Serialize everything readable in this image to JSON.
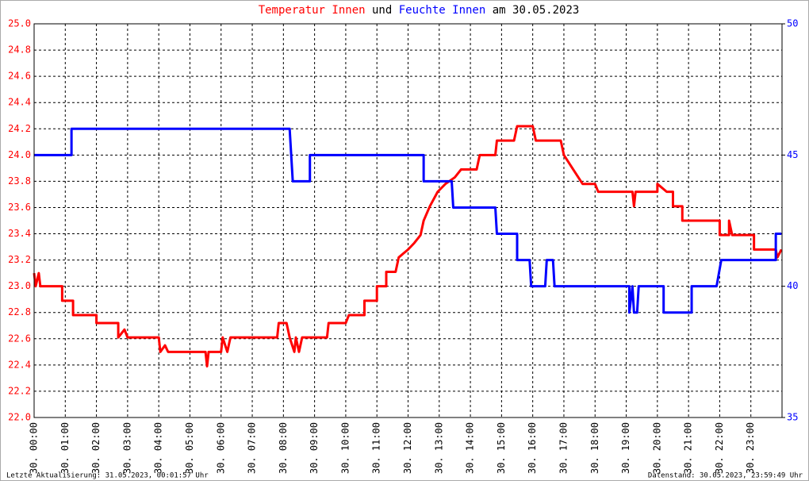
{
  "chart_data": {
    "type": "line",
    "title_parts": [
      "und",
      "am 30.05.2023"
    ],
    "footer_left": "Letzte Aktualisierung: 31.05.2023, 00:01:57 Uhr",
    "footer_right": "Datenstand: 30.05.2023, 23:59:49 Uhr",
    "grid": true,
    "xlim": [
      0,
      24
    ],
    "xticks": [
      {
        "value": 0,
        "label": "30. 00:00"
      },
      {
        "value": 1,
        "label": "30. 01:00"
      },
      {
        "value": 2,
        "label": "30. 02:00"
      },
      {
        "value": 3,
        "label": "30. 03:00"
      },
      {
        "value": 4,
        "label": "30. 04:00"
      },
      {
        "value": 5,
        "label": "30. 05:00"
      },
      {
        "value": 6,
        "label": "30. 06:00"
      },
      {
        "value": 7,
        "label": "30. 07:00"
      },
      {
        "value": 8,
        "label": "30. 08:00"
      },
      {
        "value": 9,
        "label": "30. 09:00"
      },
      {
        "value": 10,
        "label": "30. 10:00"
      },
      {
        "value": 11,
        "label": "30. 11:00"
      },
      {
        "value": 12,
        "label": "30. 12:00"
      },
      {
        "value": 13,
        "label": "30. 13:00"
      },
      {
        "value": 14,
        "label": "30. 14:00"
      },
      {
        "value": 15,
        "label": "30. 15:00"
      },
      {
        "value": 16,
        "label": "30. 16:00"
      },
      {
        "value": 17,
        "label": "30. 17:00"
      },
      {
        "value": 18,
        "label": "30. 18:00"
      },
      {
        "value": 19,
        "label": "30. 19:00"
      },
      {
        "value": 20,
        "label": "30. 20:00"
      },
      {
        "value": 21,
        "label": "30. 21:00"
      },
      {
        "value": 22,
        "label": "30. 22:00"
      },
      {
        "value": 23,
        "label": "30. 23:00"
      }
    ],
    "ylim": [
      22.0,
      25.0
    ],
    "yticks": [
      {
        "value": 22,
        "label": "22.0"
      },
      22.2,
      22.4,
      22.6,
      22.8,
      {
        "value": 23,
        "label": "23.0"
      },
      23.2,
      23.4,
      23.6,
      23.8,
      {
        "value": 24,
        "label": "24.0"
      },
      24.2,
      24.4,
      24.6,
      24.8,
      {
        "value": 25,
        "label": "25.0"
      }
    ],
    "y2lim": [
      35,
      50
    ],
    "y2ticks": [
      35,
      40,
      45,
      50
    ],
    "series": [
      {
        "name": "Temperatur Innen",
        "color": "#ff0000",
        "x": [
          0,
          0.05,
          0.15,
          0.2,
          0.9,
          0.9,
          1.25,
          1.25,
          2.0,
          2.0,
          2.7,
          2.7,
          2.9,
          3.0,
          4.0,
          4.05,
          4.2,
          4.3,
          5.5,
          5.55,
          5.6,
          6.0,
          6.05,
          6.2,
          6.3,
          7.8,
          7.85,
          8.1,
          8.2,
          8.35,
          8.4,
          8.5,
          8.6,
          9.4,
          9.45,
          10.0,
          10.1,
          10.6,
          10.6,
          11.0,
          11.0,
          11.3,
          11.3,
          11.6,
          11.7,
          12.0,
          12.2,
          12.4,
          12.5,
          12.7,
          12.95,
          13.2,
          13.5,
          13.7,
          14.2,
          14.3,
          14.8,
          14.85,
          15.4,
          15.5,
          16.0,
          16.1,
          16.9,
          17.0,
          17.3,
          17.6,
          18.0,
          18.1,
          19.2,
          19.25,
          19.3,
          20.0,
          20.0,
          20.3,
          20.5,
          20.5,
          20.8,
          20.8,
          22.0,
          22.0,
          22.3,
          22.3,
          22.4,
          23.1,
          23.1,
          23.8,
          23.85,
          23.98
        ],
        "values": [
          23.1,
          23.0,
          23.1,
          23.0,
          23.0,
          22.89,
          22.89,
          22.78,
          22.78,
          22.72,
          22.72,
          22.61,
          22.67,
          22.61,
          22.61,
          22.5,
          22.55,
          22.5,
          22.5,
          22.39,
          22.5,
          22.5,
          22.61,
          22.5,
          22.61,
          22.61,
          22.72,
          22.72,
          22.61,
          22.5,
          22.61,
          22.5,
          22.61,
          22.61,
          22.72,
          22.72,
          22.78,
          22.78,
          22.89,
          22.89,
          23.0,
          23.0,
          23.11,
          23.11,
          23.22,
          23.28,
          23.33,
          23.39,
          23.5,
          23.61,
          23.72,
          23.78,
          23.83,
          23.89,
          23.89,
          24.0,
          24.0,
          24.11,
          24.11,
          24.22,
          24.22,
          24.11,
          24.11,
          24.0,
          23.89,
          23.78,
          23.78,
          23.72,
          23.72,
          23.61,
          23.72,
          23.72,
          23.78,
          23.72,
          23.72,
          23.61,
          23.61,
          23.5,
          23.5,
          23.39,
          23.39,
          23.5,
          23.39,
          23.39,
          23.28,
          23.28,
          23.22,
          23.28
        ]
      },
      {
        "name": "Feuchte Innen",
        "color": "#0000ff",
        "axis": "y2",
        "x": [
          0,
          1.2,
          1.2,
          8.2,
          8.25,
          8.3,
          8.85,
          8.85,
          12.5,
          12.5,
          13.4,
          13.45,
          14.8,
          14.85,
          15.5,
          15.5,
          15.9,
          15.95,
          16.4,
          16.45,
          16.65,
          16.7,
          19.1,
          19.1,
          19.2,
          19.25,
          19.35,
          19.4,
          20.2,
          20.2,
          21.1,
          21.1,
          21.9,
          22.05,
          23.8,
          23.8,
          23.98
        ],
        "values": [
          45,
          45,
          46,
          46,
          45,
          44,
          44,
          45,
          45,
          44,
          44,
          43,
          43,
          42,
          42,
          41,
          41,
          40,
          40,
          41,
          41,
          40,
          40,
          39,
          40,
          39,
          39,
          40,
          40,
          39,
          39,
          40,
          40,
          41,
          41,
          42,
          42
        ]
      }
    ]
  }
}
